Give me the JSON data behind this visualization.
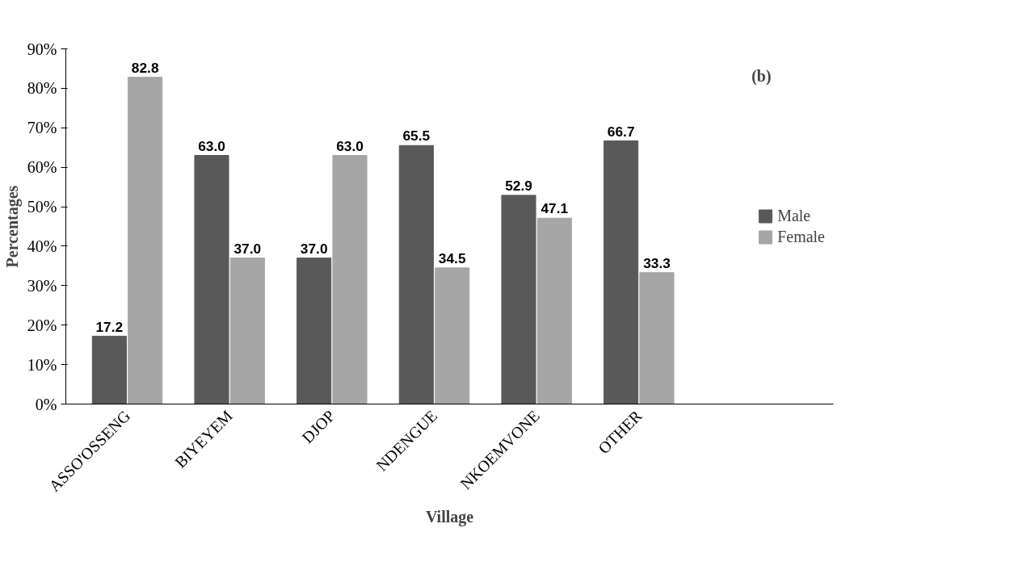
{
  "chart_data": {
    "type": "bar",
    "xlabel": "Village",
    "ylabel": "Percentages",
    "categories": [
      "ASSO'OSSENG",
      "BIYEYEM",
      "DJOP",
      "NDENGUE",
      "NKOEMVONE",
      "OTHER"
    ],
    "series": [
      {
        "name": "Male",
        "color": "#595959",
        "values": [
          17.2,
          63.0,
          37.0,
          65.5,
          52.9,
          66.7
        ],
        "value_labels": [
          "17.2",
          "63.0",
          "37.0",
          "65.5",
          "52.9",
          "66.7"
        ]
      },
      {
        "name": "Female",
        "color": "#a6a6a6",
        "values": [
          82.8,
          37.0,
          63.0,
          34.5,
          47.1,
          33.3
        ],
        "value_labels": [
          "82.8",
          "37.0",
          "63.0",
          "34.5",
          "47.1",
          "33.3"
        ]
      }
    ],
    "ylim": [
      0,
      90
    ],
    "yticks": [
      {
        "value": 0,
        "label": "0%"
      },
      {
        "value": 10,
        "label": "10%"
      },
      {
        "value": 20,
        "label": "20%"
      },
      {
        "value": 30,
        "label": "30%"
      },
      {
        "value": 40,
        "label": "40%"
      },
      {
        "value": 50,
        "label": "50%"
      },
      {
        "value": 60,
        "label": "60%"
      },
      {
        "value": 70,
        "label": "70%"
      },
      {
        "value": 80,
        "label": "80%"
      },
      {
        "value": 90,
        "label": "90%"
      }
    ],
    "annotations": [
      "(b)"
    ],
    "legend": "right",
    "grid": false
  }
}
